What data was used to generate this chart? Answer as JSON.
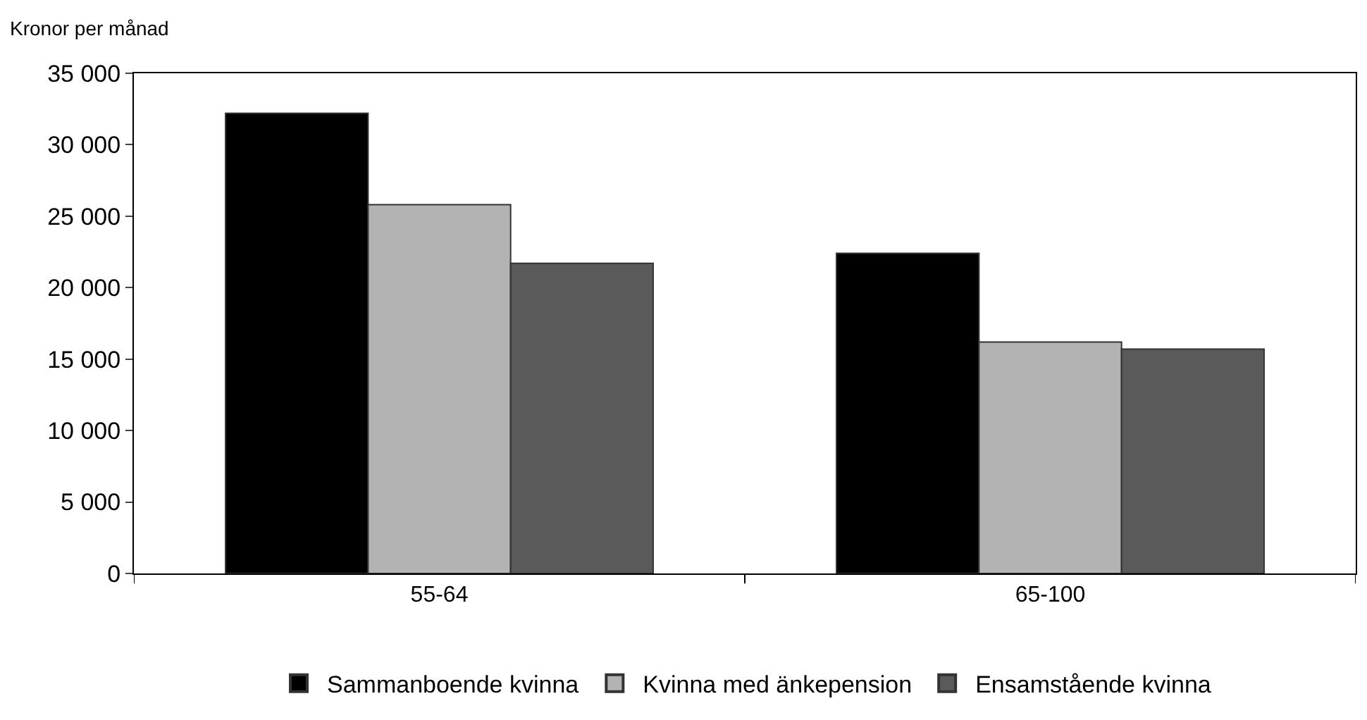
{
  "chart_data": {
    "type": "bar",
    "ylabel": "Kronor per månad",
    "categories": [
      "55-64",
      "65-100"
    ],
    "series": [
      {
        "name": "Sammanboende kvinna",
        "color": "#000000",
        "values": [
          32200,
          22400
        ]
      },
      {
        "name": "Kvinna med änkepension",
        "color": "#b3b3b3",
        "values": [
          25800,
          16200
        ]
      },
      {
        "name": "Ensamstående kvinna",
        "color": "#5a5a5a",
        "values": [
          21700,
          15700
        ]
      }
    ],
    "ylim": [
      0,
      35000
    ],
    "yticks": [
      {
        "value": 0,
        "label": "0"
      },
      {
        "value": 5000,
        "label": "5 000"
      },
      {
        "value": 10000,
        "label": "10 000"
      },
      {
        "value": 15000,
        "label": "15 000"
      },
      {
        "value": 20000,
        "label": "20 000"
      },
      {
        "value": 25000,
        "label": "25 000"
      },
      {
        "value": 30000,
        "label": "30 000"
      },
      {
        "value": 35000,
        "label": "35 000"
      }
    ],
    "legend": "bottom"
  }
}
